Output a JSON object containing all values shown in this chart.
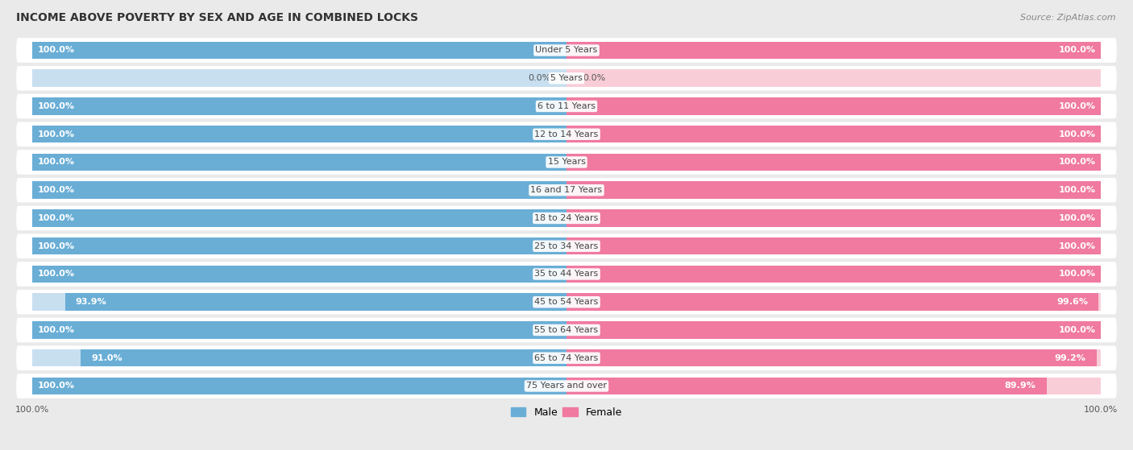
{
  "title": "INCOME ABOVE POVERTY BY SEX AND AGE IN COMBINED LOCKS",
  "source": "Source: ZipAtlas.com",
  "categories": [
    "Under 5 Years",
    "5 Years",
    "6 to 11 Years",
    "12 to 14 Years",
    "15 Years",
    "16 and 17 Years",
    "18 to 24 Years",
    "25 to 34 Years",
    "35 to 44 Years",
    "45 to 54 Years",
    "55 to 64 Years",
    "65 to 74 Years",
    "75 Years and over"
  ],
  "male_values": [
    100.0,
    0.0,
    100.0,
    100.0,
    100.0,
    100.0,
    100.0,
    100.0,
    100.0,
    93.9,
    100.0,
    91.0,
    100.0
  ],
  "female_values": [
    100.0,
    0.0,
    100.0,
    100.0,
    100.0,
    100.0,
    100.0,
    100.0,
    100.0,
    99.6,
    100.0,
    99.2,
    89.9
  ],
  "male_color": "#6aaed6",
  "female_color": "#f07aa0",
  "male_light_color": "#c8dff0",
  "female_light_color": "#f9cdd8",
  "bg_color": "#eaeaea",
  "row_bg_color": "#f5f5f5",
  "bar_height": 0.62,
  "max_val": 100.0,
  "legend_male": "Male",
  "legend_female": "Female"
}
